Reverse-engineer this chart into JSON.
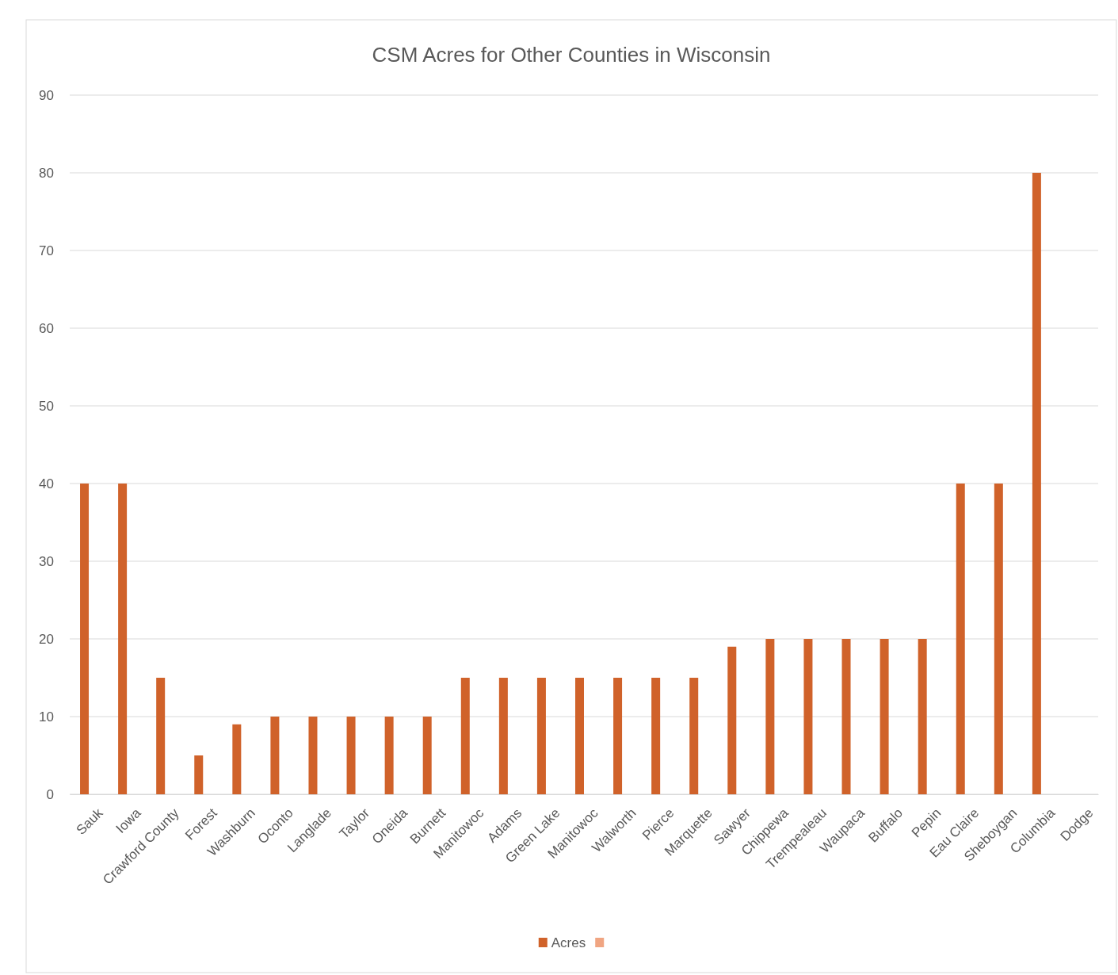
{
  "chart_data": {
    "type": "bar",
    "title": "CSM Acres for Other Counties in Wisconsin",
    "categories": [
      "Sauk",
      "Iowa",
      "Crawford County",
      "Forest",
      "Washburn",
      "Oconto",
      "Langlade",
      "Taylor",
      "Oneida",
      "Burnett",
      "Manitowoc",
      "Adams",
      "Green Lake",
      "Manitowoc",
      "Walworth",
      "Pierce",
      "Marquette",
      "Sawyer",
      "Chippewa",
      "Trempealeau",
      "Waupaca",
      "Buffalo",
      "Pepin",
      "Eau Claire",
      "Sheboygan",
      "Columbia",
      "Dodge"
    ],
    "series": [
      {
        "name": "Acres",
        "color": "#d0622a",
        "values": [
          40,
          40,
          15,
          5,
          9,
          10,
          10,
          10,
          10,
          10,
          15,
          15,
          15,
          15,
          15,
          15,
          15,
          19,
          20,
          20,
          20,
          20,
          20,
          40,
          40,
          80,
          null
        ]
      },
      {
        "color": "#f0a582",
        "values": [
          null,
          null,
          null,
          null,
          null,
          null,
          null,
          null,
          null,
          null,
          null,
          null,
          null,
          null,
          null,
          null,
          null,
          null,
          null,
          null,
          null,
          null,
          null,
          null,
          null,
          null,
          null
        ]
      }
    ],
    "ylim": [
      0,
      90
    ],
    "yticks": [
      0,
      10,
      20,
      30,
      40,
      50,
      60,
      70,
      80,
      90
    ],
    "grid": "y",
    "legend": "bottom"
  }
}
